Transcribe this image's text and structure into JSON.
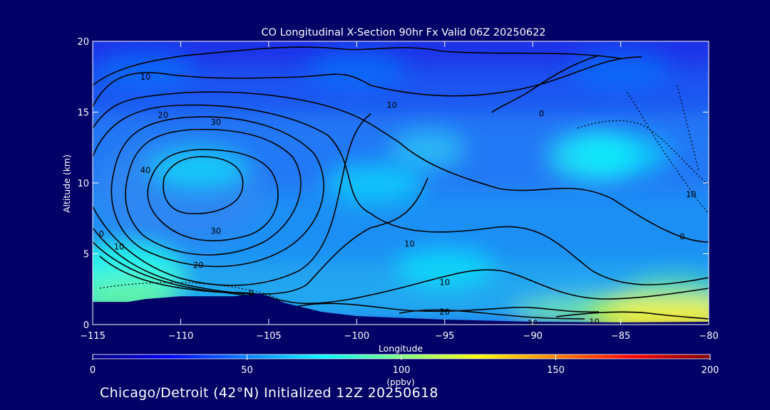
{
  "chart_data": {
    "type": "heatmap",
    "title": "CO Longitudinal X-Section 90hr  Fx Valid 06Z 20250622",
    "xlabel": "Longitude",
    "ylabel": "Altitude (km)",
    "xlim": [
      -115,
      -80
    ],
    "ylim": [
      0,
      20
    ],
    "x_ticks": [
      -115,
      -110,
      -105,
      -100,
      -95,
      -90,
      -85,
      -80
    ],
    "x_tick_labels": [
      "−115",
      "−110",
      "−105",
      "−100",
      "−95",
      "−90",
      "−85",
      "−80"
    ],
    "y_ticks": [
      0,
      5,
      10,
      15,
      20
    ],
    "y_tick_labels": [
      "0",
      "5",
      "10",
      "15",
      "20"
    ],
    "colorbar": {
      "min": 0,
      "max": 200,
      "ticks": [
        0,
        50,
        100,
        150,
        200
      ],
      "tick_labels": [
        "0",
        "50",
        "100",
        "150",
        "200"
      ],
      "unit_label": "(ppbv)"
    },
    "colormap": [
      "#000080",
      "#0000ff",
      "#0080ff",
      "#00ffff",
      "#80ff80",
      "#ffff00",
      "#ff8000",
      "#ff0000",
      "#800000"
    ],
    "field_samples": [
      {
        "lon": -112,
        "alt": 18,
        "co": 40
      },
      {
        "lon": -100,
        "alt": 18,
        "co": 42
      },
      {
        "lon": -85,
        "alt": 18,
        "co": 45
      },
      {
        "lon": -109,
        "alt": 11,
        "co": 65
      },
      {
        "lon": -99,
        "alt": 10,
        "co": 68
      },
      {
        "lon": -85,
        "alt": 12,
        "co": 85
      },
      {
        "lon": -113,
        "alt": 4,
        "co": 80
      },
      {
        "lon": -95,
        "alt": 4,
        "co": 74
      },
      {
        "lon": -82,
        "alt": 2,
        "co": 88
      },
      {
        "lon": -113,
        "alt": 2,
        "co": 95
      },
      {
        "lon": -84,
        "alt": 0.5,
        "co": 120
      },
      {
        "lon": -81,
        "alt": 0.5,
        "co": 135
      }
    ],
    "contours": [
      {
        "label": "10",
        "lon": -112,
        "alt": 17.5,
        "style": "solid"
      },
      {
        "label": "20",
        "lon": -111,
        "alt": 14.8,
        "style": "solid"
      },
      {
        "label": "30",
        "lon": -108,
        "alt": 14.3,
        "style": "solid"
      },
      {
        "label": "40",
        "lon": -112,
        "alt": 10.9,
        "style": "solid"
      },
      {
        "label": "30",
        "lon": -108,
        "alt": 6.6,
        "style": "solid"
      },
      {
        "label": "20",
        "lon": -109,
        "alt": 4.2,
        "style": "solid"
      },
      {
        "label": "10",
        "lon": -113.5,
        "alt": 5.5,
        "style": "solid"
      },
      {
        "label": "0",
        "lon": -114.5,
        "alt": 6.4,
        "style": "solid"
      },
      {
        "label": "0",
        "lon": -106,
        "alt": 2.2,
        "style": "solid"
      },
      {
        "label": "10",
        "lon": -98,
        "alt": 15.5,
        "style": "solid"
      },
      {
        "label": "0",
        "lon": -89.5,
        "alt": 14.9,
        "style": "solid"
      },
      {
        "label": "10",
        "lon": -97,
        "alt": 5.7,
        "style": "solid"
      },
      {
        "label": "10",
        "lon": -95,
        "alt": 3.0,
        "style": "solid"
      },
      {
        "label": "20",
        "lon": -95,
        "alt": 0.9,
        "style": "solid"
      },
      {
        "label": "10",
        "lon": -90,
        "alt": 0.1,
        "style": "solid"
      },
      {
        "label": "10",
        "lon": -86.5,
        "alt": 0.2,
        "style": "solid"
      },
      {
        "label": "10",
        "lon": -81,
        "alt": 9.2,
        "style": "dotted"
      },
      {
        "label": "0",
        "lon": -81.5,
        "alt": 6.2,
        "style": "solid"
      }
    ],
    "terrain": [
      {
        "lon": -115,
        "alt": 1.6
      },
      {
        "lon": -113,
        "alt": 1.6
      },
      {
        "lon": -112,
        "alt": 1.8
      },
      {
        "lon": -110,
        "alt": 2.0
      },
      {
        "lon": -107,
        "alt": 2.0
      },
      {
        "lon": -105.5,
        "alt": 2.2
      },
      {
        "lon": -104,
        "alt": 1.5
      },
      {
        "lon": -102,
        "alt": 0.9
      },
      {
        "lon": -100,
        "alt": 0.6
      },
      {
        "lon": -95,
        "alt": 0.35
      },
      {
        "lon": -90,
        "alt": 0.2
      },
      {
        "lon": -85,
        "alt": 0.15
      },
      {
        "lon": -80,
        "alt": 0.2
      }
    ]
  },
  "footer": "Chicago/Detroit (42°N) Initialized 12Z 20250618"
}
